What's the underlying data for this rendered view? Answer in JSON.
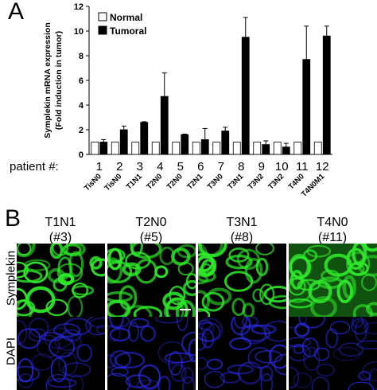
{
  "panel_a_letter": "A",
  "panel_b_letter": "B",
  "chart_data": {
    "type": "bar",
    "ylabel": "Symplekin mRNA expression",
    "ylabel2": "(Fold induction in tumor)",
    "ylim": [
      0,
      12
    ],
    "yticks": [
      0,
      2,
      4,
      6,
      8,
      10,
      12
    ],
    "patient_prefix": "patient #:",
    "patients": [
      "1",
      "2",
      "3",
      "4",
      "5",
      "6",
      "7",
      "8",
      "9",
      "10",
      "11",
      "12"
    ],
    "categories": [
      "TisN0",
      "TisN0",
      "T1N1",
      "T2N0",
      "T2N0",
      "T2N1",
      "T3N0",
      "T3N1",
      "T3N2",
      "T3N2",
      "T4N0",
      "T4N0M1"
    ],
    "legend_position": "top-left",
    "series": [
      {
        "name": "Normal",
        "color": "#ffffff",
        "values": [
          1,
          1,
          1,
          1,
          1,
          1,
          1,
          1,
          1,
          1,
          1,
          1
        ],
        "errors": [
          0,
          0,
          0,
          0,
          0,
          0,
          0,
          0,
          0,
          0,
          0,
          0
        ]
      },
      {
        "name": "Tumoral",
        "color": "#000000",
        "values": [
          1.0,
          2.0,
          2.6,
          4.7,
          1.6,
          1.2,
          1.9,
          9.5,
          0.8,
          0.6,
          7.7,
          9.6
        ],
        "errors": [
          0.2,
          0.3,
          0.05,
          1.9,
          0.05,
          0.9,
          0.3,
          1.6,
          0.3,
          0.3,
          2.7,
          0.8
        ]
      }
    ]
  },
  "panel_b": {
    "columns": [
      {
        "stage": "T1N1",
        "patient": "(#3)"
      },
      {
        "stage": "T2N0",
        "patient": "(#5)"
      },
      {
        "stage": "T3N1",
        "patient": "(#8)"
      },
      {
        "stage": "T4N0",
        "patient": "(#11)"
      }
    ],
    "rows": [
      {
        "label": "Symplekin",
        "color": "#2ee82a"
      },
      {
        "label": "DAPI",
        "color": "#2d2cf5"
      }
    ]
  }
}
